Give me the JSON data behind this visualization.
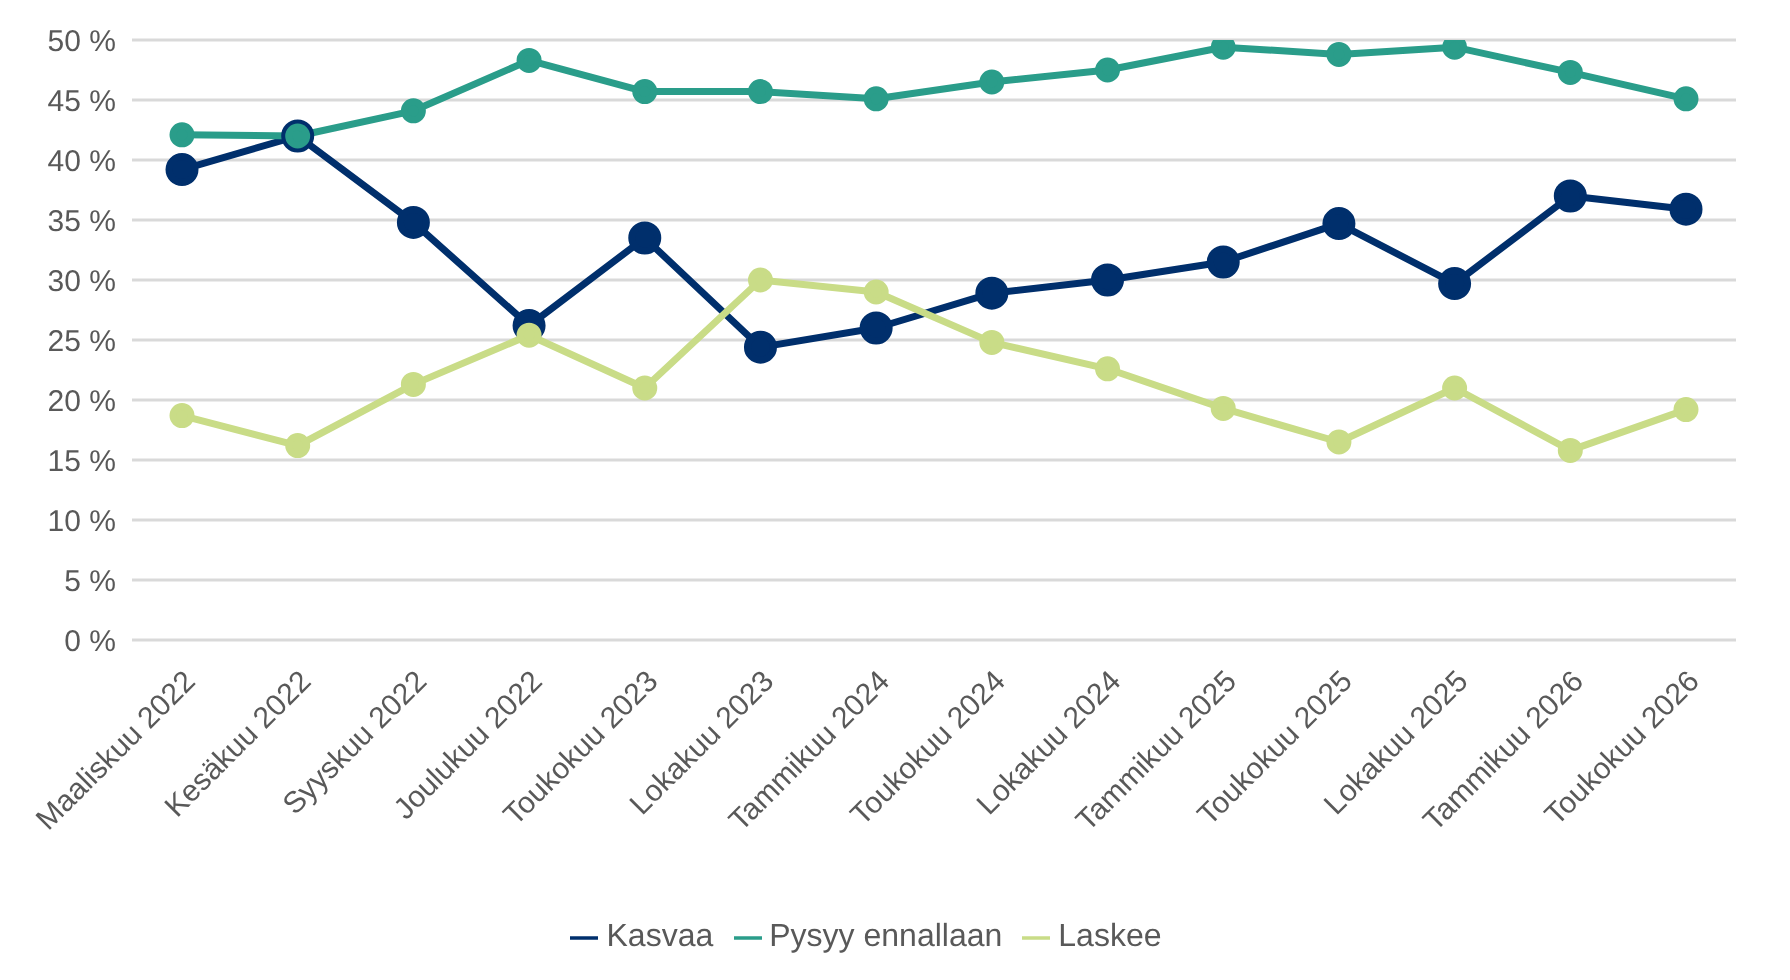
{
  "chart_data": {
    "type": "line",
    "categories": [
      "Maaliskuu 2022",
      "Kesäkuu 2022",
      "Syyskuu 2022",
      "Joulukuu 2022",
      "Toukokuu 2023",
      "Lokakuu 2023",
      "Tammikuu 2024",
      "Toukokuu 2024",
      "Lokakuu 2024",
      "Tammikuu 2025",
      "Toukokuu 2025",
      "Lokakuu 2025",
      "Tammikuu 2026",
      "Toukokuu 2026"
    ],
    "series": [
      {
        "name": "Kasvaa",
        "color": "#002f6c",
        "values": [
          39.2,
          42,
          34.8,
          26.2,
          33.5,
          24.4,
          26,
          28.9,
          30,
          31.5,
          34.7,
          29.7,
          37,
          35.9
        ]
      },
      {
        "name": "Pysyy ennallaan",
        "color": "#2a9d8a",
        "values": [
          42.1,
          42,
          44.1,
          48.3,
          45.7,
          45.7,
          45.1,
          46.5,
          47.5,
          49.4,
          48.8,
          49.4,
          47.3,
          45.1
        ]
      },
      {
        "name": "Laskee",
        "color": "#c9dc87",
        "values": [
          18.7,
          16.2,
          21.3,
          25.4,
          21,
          30,
          29,
          24.8,
          22.6,
          19.3,
          16.5,
          21,
          15.8,
          19.2
        ]
      }
    ],
    "ylim": [
      0,
      50
    ],
    "yticks": [
      {
        "value": 0,
        "label": "0 %"
      },
      {
        "value": 5,
        "label": "5 %"
      },
      {
        "value": 10,
        "label": "10 %"
      },
      {
        "value": 15,
        "label": "15 %"
      },
      {
        "value": 20,
        "label": "20 %"
      },
      {
        "value": 25,
        "label": "25 %"
      },
      {
        "value": 30,
        "label": "30 %"
      },
      {
        "value": 35,
        "label": "35 %"
      },
      {
        "value": 40,
        "label": "40 %"
      },
      {
        "value": 45,
        "label": "45 %"
      },
      {
        "value": 50,
        "label": "50 %"
      }
    ],
    "grid": "y",
    "legend": "bottom",
    "marker": "circle",
    "line_style": "solid"
  }
}
